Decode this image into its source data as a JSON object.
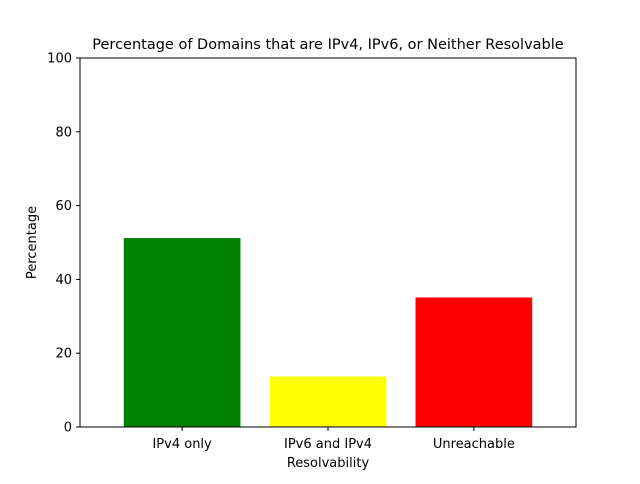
{
  "chart_data": {
    "type": "bar",
    "title": "Percentage of Domains that are IPv4, IPv6, or Neither Resolvable",
    "xlabel": "Resolvability",
    "ylabel": "Percentage",
    "categories": [
      "IPv4 only",
      "IPv6 and IPv4",
      "Unreachable"
    ],
    "values": [
      51.2,
      13.7,
      35.1
    ],
    "colors": [
      "#008000",
      "#ffff00",
      "#ff0000"
    ],
    "ylim": [
      0,
      100
    ],
    "yticks": [
      0,
      20,
      40,
      60,
      80,
      100
    ],
    "grid": false,
    "legend": "none"
  }
}
